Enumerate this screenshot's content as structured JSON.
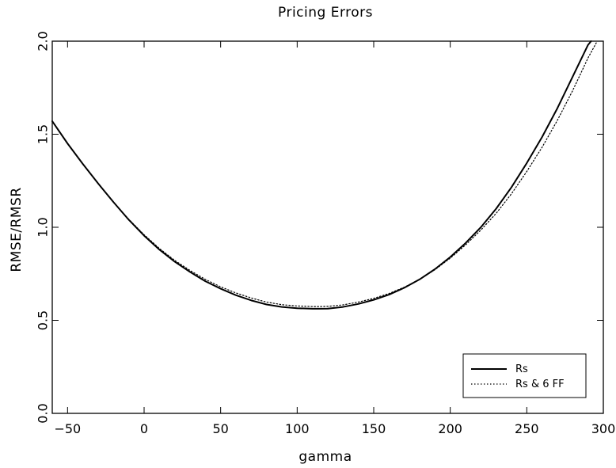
{
  "chart_data": {
    "type": "line",
    "title": "Pricing Errors",
    "xlabel": "gamma",
    "ylabel": "RMSE/RMSR",
    "xlim": [
      -60,
      300
    ],
    "ylim": [
      0.0,
      2.0
    ],
    "xticks": [
      -50,
      0,
      50,
      100,
      150,
      200,
      250,
      300
    ],
    "xtick_labels": [
      "−50",
      "0",
      "50",
      "100",
      "150",
      "200",
      "250",
      "300"
    ],
    "yticks": [
      0.0,
      0.5,
      1.0,
      1.5,
      2.0
    ],
    "ytick_labels": [
      "0.0",
      "0.5",
      "1.0",
      "1.5",
      "2.0"
    ],
    "grid": false,
    "legend_position": "bottom-right",
    "series": [
      {
        "name": "Rs",
        "style": "solid",
        "x": [
          -60,
          -50,
          -40,
          -30,
          -20,
          -10,
          0,
          10,
          20,
          30,
          40,
          50,
          60,
          70,
          80,
          90,
          100,
          110,
          115,
          120,
          130,
          140,
          150,
          160,
          170,
          180,
          190,
          200,
          210,
          220,
          230,
          240,
          250,
          260,
          270,
          280,
          290,
          292
        ],
        "y": [
          1.57,
          1.45,
          1.34,
          1.235,
          1.135,
          1.04,
          0.955,
          0.88,
          0.815,
          0.76,
          0.71,
          0.67,
          0.635,
          0.607,
          0.585,
          0.572,
          0.565,
          0.562,
          0.562,
          0.563,
          0.572,
          0.588,
          0.61,
          0.638,
          0.675,
          0.72,
          0.775,
          0.84,
          0.915,
          1.0,
          1.1,
          1.215,
          1.345,
          1.485,
          1.64,
          1.81,
          1.98,
          2.0
        ]
      },
      {
        "name": "Rs & 6 FF",
        "style": "dotted",
        "x": [
          -60,
          -50,
          -40,
          -30,
          -20,
          -10,
          0,
          10,
          20,
          30,
          40,
          50,
          60,
          70,
          80,
          90,
          100,
          110,
          115,
          120,
          130,
          140,
          150,
          160,
          170,
          180,
          190,
          200,
          210,
          220,
          230,
          240,
          250,
          260,
          270,
          280,
          290,
          296
        ],
        "y": [
          1.57,
          1.45,
          1.34,
          1.235,
          1.135,
          1.043,
          0.96,
          0.886,
          0.822,
          0.768,
          0.72,
          0.68,
          0.647,
          0.62,
          0.598,
          0.584,
          0.577,
          0.574,
          0.574,
          0.575,
          0.583,
          0.598,
          0.618,
          0.644,
          0.678,
          0.72,
          0.772,
          0.834,
          0.905,
          0.985,
          1.075,
          1.18,
          1.3,
          1.43,
          1.575,
          1.735,
          1.91,
          2.0
        ]
      }
    ]
  }
}
